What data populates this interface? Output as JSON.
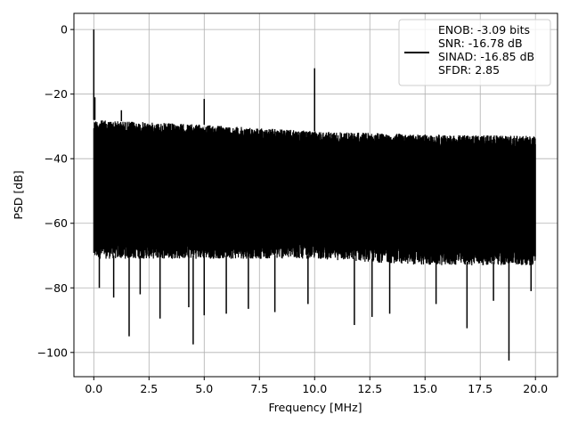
{
  "chart_data": {
    "type": "line",
    "title": "",
    "xlabel": "Frequency [MHz]",
    "ylabel": "PSD [dB]",
    "xlim": [
      -0.9,
      21.0
    ],
    "ylim": [
      -107.5,
      5.0
    ],
    "x_ticks": [
      0.0,
      2.5,
      5.0,
      7.5,
      10.0,
      12.5,
      15.0,
      17.5,
      20.0
    ],
    "x_tick_labels": [
      "0.0",
      "2.5",
      "5.0",
      "7.5",
      "10.0",
      "12.5",
      "15.0",
      "17.5",
      "20.0"
    ],
    "y_ticks": [
      0,
      -20,
      -40,
      -60,
      -80,
      -100
    ],
    "y_tick_labels": [
      "0",
      "−20",
      "−40",
      "−60",
      "−80",
      "−100"
    ],
    "grid": true,
    "legend_position": "top-right",
    "series": [
      {
        "name": "ENOB: -3.09 bits\nSNR: -16.78 dB\nSINAD: -16.85 dB\nSFDR: 2.85",
        "color": "#000000",
        "noise_band_upper_db": [
          [
            0.0,
            -28.0
          ],
          [
            5.0,
            -29.5
          ],
          [
            10.0,
            -31.5
          ],
          [
            15.0,
            -32.5
          ],
          [
            20.0,
            -33.0
          ]
        ],
        "noise_band_lower_db": [
          [
            0.0,
            -70.0
          ],
          [
            5.0,
            -70.0
          ],
          [
            10.0,
            -70.0
          ],
          [
            15.0,
            -72.0
          ],
          [
            20.0,
            -72.0
          ]
        ],
        "peaks": [
          {
            "x": 0.0,
            "y": 0.0
          },
          {
            "x": 0.05,
            "y": -21.0
          },
          {
            "x": 1.25,
            "y": -25.0
          },
          {
            "x": 5.0,
            "y": -21.5
          },
          {
            "x": 10.0,
            "y": -12.0
          }
        ],
        "troughs": [
          {
            "x": 0.25,
            "y": -80.0
          },
          {
            "x": 0.9,
            "y": -83.0
          },
          {
            "x": 1.6,
            "y": -95.0
          },
          {
            "x": 2.1,
            "y": -82.0
          },
          {
            "x": 3.0,
            "y": -89.5
          },
          {
            "x": 4.3,
            "y": -86.0
          },
          {
            "x": 4.5,
            "y": -97.5
          },
          {
            "x": 5.0,
            "y": -88.5
          },
          {
            "x": 6.0,
            "y": -88.0
          },
          {
            "x": 7.0,
            "y": -86.5
          },
          {
            "x": 8.2,
            "y": -87.5
          },
          {
            "x": 9.7,
            "y": -85.0
          },
          {
            "x": 11.8,
            "y": -91.5
          },
          {
            "x": 12.6,
            "y": -89.0
          },
          {
            "x": 13.4,
            "y": -88.0
          },
          {
            "x": 15.5,
            "y": -85.0
          },
          {
            "x": 16.9,
            "y": -92.5
          },
          {
            "x": 18.1,
            "y": -84.0
          },
          {
            "x": 18.8,
            "y": -102.5
          },
          {
            "x": 19.8,
            "y": -81.0
          }
        ]
      }
    ]
  }
}
